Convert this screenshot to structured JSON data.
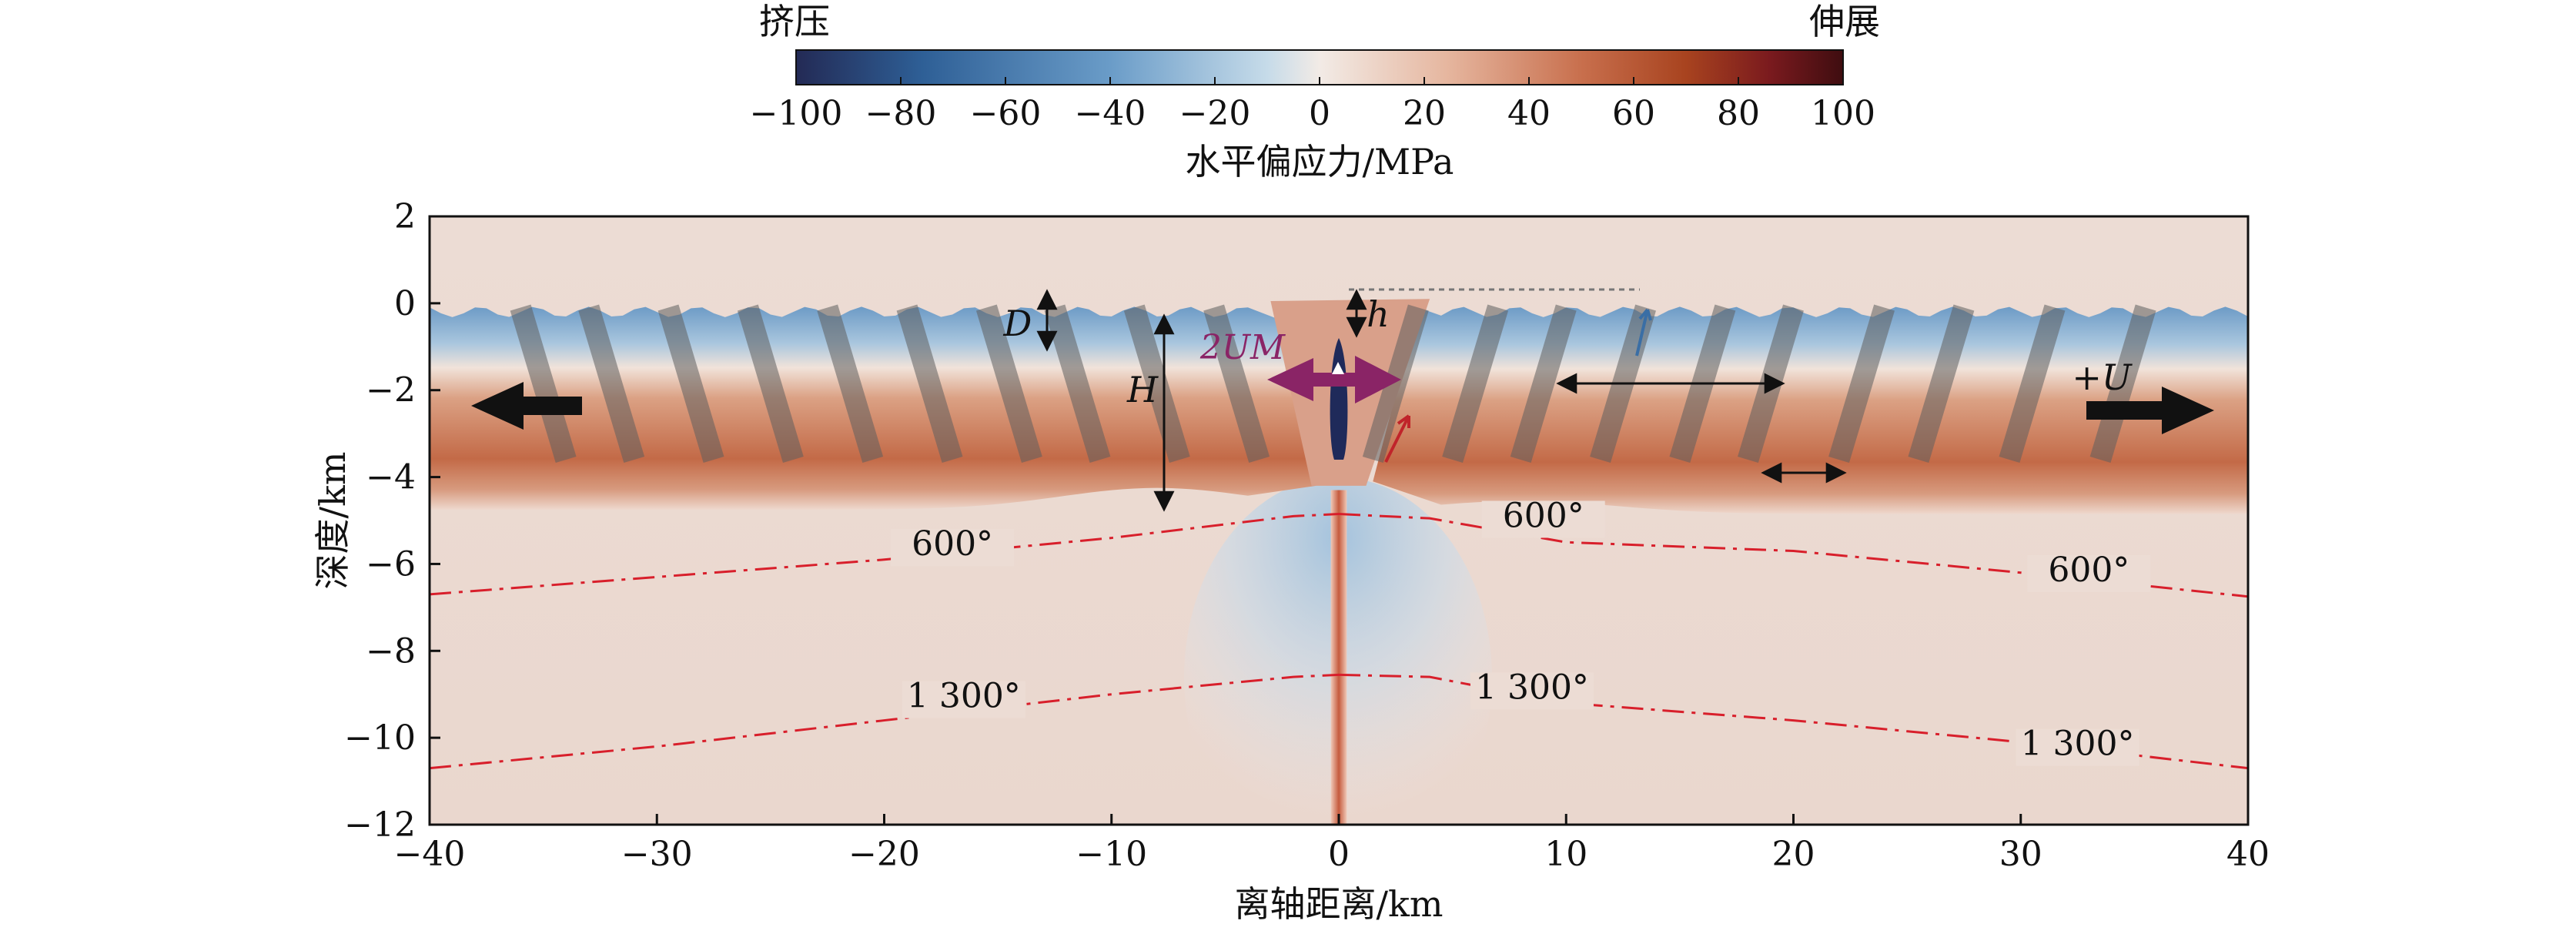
{
  "colorbar": {
    "left_label": "挤压",
    "right_label": "伸展",
    "title": "水平偏应力/MPa",
    "ticks": [
      "−100",
      "−80",
      "−60",
      "−40",
      "−20",
      "0",
      "20",
      "40",
      "60",
      "80",
      "100"
    ],
    "range": [
      -100,
      100
    ],
    "colors": [
      "#232a55",
      "#2e5f96",
      "#6a9cc8",
      "#c6dbe9",
      "#f2ebe6",
      "#e6b7a0",
      "#c86f4d",
      "#a8431f",
      "#7a1a1e",
      "#3f0d10"
    ]
  },
  "chart_data": {
    "type": "heatmap",
    "xlabel": "离轴距离/km",
    "ylabel": "深度/km",
    "xlim": [
      -40,
      40
    ],
    "ylim": [
      -12,
      2
    ],
    "x_ticks": [
      "−40",
      "−30",
      "−20",
      "−10",
      "0",
      "10",
      "20",
      "30",
      "40"
    ],
    "y_ticks": [
      "2",
      "0",
      "−2",
      "−4",
      "−6",
      "−8",
      "−10",
      "−12"
    ],
    "isotherms": [
      {
        "label": "600°",
        "left": [
          [
            -40,
            -6.7
          ],
          [
            -30,
            -6.3
          ],
          [
            -20,
            -5.9
          ],
          [
            -10,
            -5.4
          ],
          [
            -2,
            -4.9
          ],
          [
            0,
            -4.85
          ]
        ],
        "right": [
          [
            0,
            -4.85
          ],
          [
            4,
            -4.95
          ],
          [
            10,
            -5.5
          ],
          [
            20,
            -5.7
          ],
          [
            30,
            -6.2
          ],
          [
            40,
            -6.75
          ]
        ],
        "label_positions": [
          [
            -17,
            -5.8
          ],
          [
            9,
            -5.15
          ],
          [
            33,
            -6.4
          ]
        ]
      },
      {
        "label": "1 300°",
        "left": [
          [
            -40,
            -10.7
          ],
          [
            -30,
            -10.2
          ],
          [
            -20,
            -9.6
          ],
          [
            -10,
            -9.0
          ],
          [
            -2,
            -8.6
          ],
          [
            0,
            -8.55
          ]
        ],
        "right": [
          [
            0,
            -8.55
          ],
          [
            4,
            -8.6
          ],
          [
            10,
            -9.2
          ],
          [
            20,
            -9.6
          ],
          [
            30,
            -10.1
          ],
          [
            40,
            -10.7
          ]
        ],
        "label_positions": [
          [
            -16.5,
            -9.3
          ],
          [
            8.5,
            -9.1
          ],
          [
            32.5,
            -10.4
          ]
        ]
      }
    ],
    "fault_offsets_km": [
      -36,
      -33,
      -29.5,
      -26,
      -22.5,
      -19,
      -15.5,
      -12.5,
      -9,
      -5.5,
      3.5,
      7,
      10,
      13.5,
      17,
      20,
      24,
      27.5,
      31.5,
      35.5
    ],
    "annotations": {
      "D": "D",
      "H": "H",
      "h": "h",
      "two_um": "2UM",
      "plus_u": "+U"
    }
  }
}
